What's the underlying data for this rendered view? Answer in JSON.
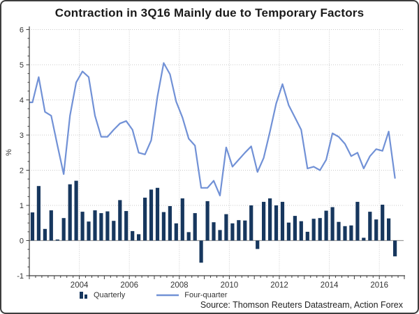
{
  "title": "Contraction in 3Q16 Mainly due to Temporary Factors",
  "source": "Source: Thomson Reuters Datastream, Action Forex",
  "legend": [
    {
      "label": "Quarterly",
      "glyph": "bar-swatch"
    },
    {
      "label": "Four-quarter",
      "glyph": "line-swatch"
    }
  ],
  "y_axis": {
    "label": "%",
    "tick_labels": [
      "6",
      "5",
      "4",
      "3",
      "2",
      "1",
      "0",
      "-1"
    ],
    "min": -1,
    "max": 6
  },
  "x_axis": {
    "tick_labels": [
      "2004",
      "2006",
      "2008",
      "2010",
      "2012",
      "2014",
      "2016"
    ],
    "start_year": 2002,
    "quarters": 59
  },
  "colors": {
    "bar": "#17375e",
    "line": "#7191d6",
    "grid": "#c9c9c9",
    "zero_line": "#9b9b9b",
    "axis": "#3f3f3f",
    "tick_text": "#333333"
  },
  "chart_data": {
    "type": "combo",
    "title": "Contraction in 3Q16 Mainly due to Temporary Factors",
    "xlabel": "",
    "ylabel": "%",
    "ylim": [
      -1,
      6
    ],
    "grid": "dotted horizontal at integers, dotted vertical at even years",
    "legend_position": "bottom-left",
    "x": [
      "2002 Q1",
      "2002 Q2",
      "2002 Q3",
      "2002 Q4",
      "2003 Q1",
      "2003 Q2",
      "2003 Q3",
      "2003 Q4",
      "2004 Q1",
      "2004 Q2",
      "2004 Q3",
      "2004 Q4",
      "2005 Q1",
      "2005 Q2",
      "2005 Q3",
      "2005 Q4",
      "2006 Q1",
      "2006 Q2",
      "2006 Q3",
      "2006 Q4",
      "2007 Q1",
      "2007 Q2",
      "2007 Q3",
      "2007 Q4",
      "2008 Q1",
      "2008 Q2",
      "2008 Q3",
      "2008 Q4",
      "2009 Q1",
      "2009 Q2",
      "2009 Q3",
      "2009 Q4",
      "2010 Q1",
      "2010 Q2",
      "2010 Q3",
      "2010 Q4",
      "2011 Q1",
      "2011 Q2",
      "2011 Q3",
      "2011 Q4",
      "2012 Q1",
      "2012 Q2",
      "2012 Q3",
      "2012 Q4",
      "2013 Q1",
      "2013 Q2",
      "2013 Q3",
      "2013 Q4",
      "2014 Q1",
      "2014 Q2",
      "2014 Q3",
      "2014 Q4",
      "2015 Q1",
      "2015 Q2",
      "2015 Q3",
      "2015 Q4",
      "2016 Q1",
      "2016 Q2",
      "2016 Q3"
    ],
    "series": [
      {
        "name": "Quarterly",
        "type": "bar",
        "values": [
          0.8,
          1.55,
          0.33,
          0.86,
          0.03,
          0.64,
          1.6,
          1.7,
          0.82,
          0.54,
          0.86,
          0.78,
          0.83,
          0.56,
          1.15,
          0.84,
          0.27,
          0.18,
          1.22,
          1.45,
          1.5,
          0.81,
          0.98,
          0.49,
          1.2,
          0.24,
          0.78,
          -0.63,
          1.12,
          0.52,
          0.3,
          0.75,
          0.49,
          0.58,
          0.57,
          1.0,
          -0.24,
          1.1,
          1.2,
          1.0,
          1.1,
          0.51,
          0.7,
          0.55,
          0.25,
          0.62,
          0.64,
          0.85,
          0.95,
          0.53,
          0.41,
          0.43,
          1.1,
          0.08,
          0.82,
          0.6,
          1.02,
          0.63,
          -0.45
        ]
      },
      {
        "name": "Four-quarter",
        "type": "line",
        "values": [
          3.93,
          4.65,
          3.66,
          3.55,
          2.7,
          1.89,
          3.55,
          4.5,
          4.81,
          4.65,
          3.55,
          2.95,
          2.95,
          3.15,
          3.33,
          3.4,
          3.15,
          2.5,
          2.45,
          2.85,
          4.1,
          5.05,
          4.73,
          3.95,
          3.5,
          2.9,
          2.7,
          1.5,
          1.5,
          1.7,
          1.28,
          2.65,
          2.1,
          2.3,
          2.5,
          2.68,
          1.95,
          2.35,
          3.1,
          3.9,
          4.45,
          3.85,
          3.5,
          3.15,
          2.05,
          2.1,
          2.0,
          2.3,
          3.05,
          2.95,
          2.75,
          2.4,
          2.5,
          2.05,
          2.4,
          2.6,
          2.55,
          3.1,
          1.78
        ]
      }
    ]
  }
}
